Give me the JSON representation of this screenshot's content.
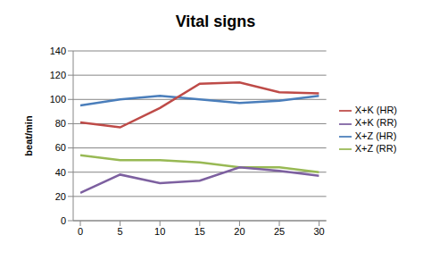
{
  "chart_data": {
    "type": "line",
    "title": "Vital signs",
    "y_label": "beat/min",
    "x": [
      0,
      5,
      10,
      15,
      20,
      25,
      30
    ],
    "xlim": [
      0,
      30
    ],
    "xticks": [
      0,
      5,
      10,
      15,
      20,
      25,
      30
    ],
    "ylim": [
      0,
      140
    ],
    "yticks": [
      0,
      20,
      40,
      60,
      80,
      100,
      120,
      140
    ],
    "grid": true,
    "legend": "right",
    "marker": "none",
    "series": [
      {
        "name": "X+Z (HR)",
        "color": "#4a7ebb",
        "values": [
          95,
          100,
          103,
          100,
          97,
          99,
          103
        ]
      },
      {
        "name": "X+K (HR)",
        "color": "#be4b48",
        "values": [
          81,
          77,
          93,
          113,
          114,
          106,
          105
        ]
      },
      {
        "name": "X+Z (RR)",
        "color": "#98b954",
        "values": [
          54,
          50,
          50,
          48,
          44,
          44,
          40
        ]
      },
      {
        "name": "X+K (RR)",
        "color": "#7d60a0",
        "values": [
          23,
          38,
          31,
          33,
          44,
          41,
          37
        ]
      }
    ]
  }
}
